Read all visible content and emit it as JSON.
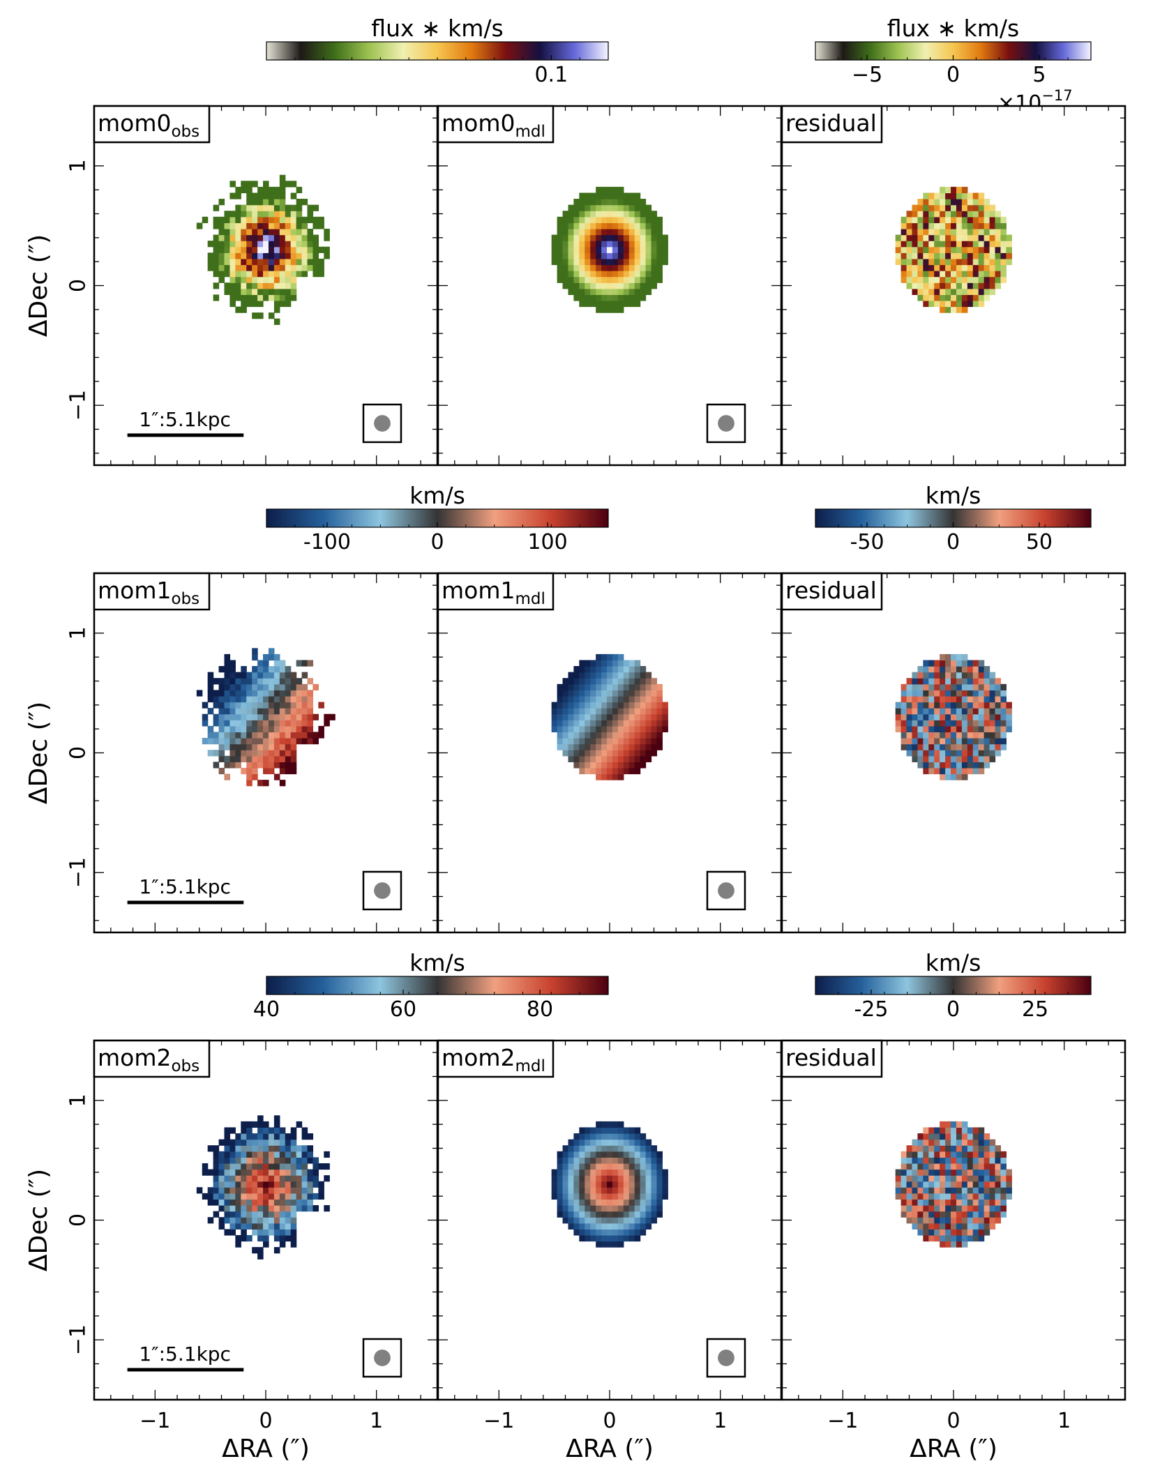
{
  "chart_data": {
    "type": "heatmap",
    "title": "",
    "xlabel": "ΔRA (″)",
    "ylabel": "ΔDec (″)",
    "xlim": [
      -1.55,
      1.55
    ],
    "ylim": [
      -1.5,
      1.5
    ],
    "xticks": [
      -1,
      0,
      1
    ],
    "yticks": [
      -1,
      0,
      1
    ],
    "grid": false,
    "scalebar_label": "1″:5.1kpc",
    "beam_diameter_arcsec": 0.15,
    "rows": [
      {
        "quantity": "mom0",
        "colorbars": [
          {
            "label": "flux ∗ km/s",
            "colormap": "gist_earth-like",
            "colors": [
              "#e6e4d6",
              "#1d1916",
              "#3f6f1a",
              "#9dc251",
              "#f0f0b0",
              "#f6c550",
              "#e07a10",
              "#7a1010",
              "#151040",
              "#6468d8",
              "#f4f4ff"
            ],
            "ticks": [
              {
                "label": "0.1",
                "value": 0.1
              }
            ],
            "range": [
              0,
              0.12
            ]
          },
          {
            "label": "flux ∗ km/s",
            "colormap": "gist_earth-like",
            "colors": [
              "#e6e4d6",
              "#1d1916",
              "#3f6f1a",
              "#9dc251",
              "#f0f0b0",
              "#f6c550",
              "#e07a10",
              "#7a1010",
              "#151040",
              "#6468d8",
              "#f4f4ff"
            ],
            "ticks": [
              {
                "label": "−5",
                "value": -5
              },
              {
                "label": "0",
                "value": 0
              },
              {
                "label": "5",
                "value": 5
              }
            ],
            "range": [
              -8,
              8
            ],
            "multiplier": "×10",
            "exponent": "−17"
          }
        ],
        "panels": [
          {
            "label": "mom0",
            "subscript": "obs",
            "kind": "obs",
            "center": [
              0.0,
              0.3
            ],
            "radius_arcsec": 0.52,
            "peak": 0.12
          },
          {
            "label": "mom0",
            "subscript": "mdl",
            "kind": "mdl",
            "center": [
              0.0,
              0.3
            ],
            "radius_arcsec": 0.52,
            "peak": 0.12
          },
          {
            "label": "residual",
            "subscript": "",
            "kind": "res",
            "center": [
              0.0,
              0.3
            ],
            "radius_arcsec": 0.52
          }
        ]
      },
      {
        "quantity": "mom1",
        "colorbars": [
          {
            "label": "km/s",
            "colormap": "RdBu_r-like",
            "colors": [
              "#0d1e4a",
              "#25609b",
              "#8ec5df",
              "#343434",
              "#f0a080",
              "#c8422e",
              "#4a0010"
            ],
            "ticks": [
              {
                "label": "-100",
                "value": -100
              },
              {
                "label": "0",
                "value": 0
              },
              {
                "label": "100",
                "value": 100
              }
            ],
            "range": [
              -155,
              155
            ]
          },
          {
            "label": "km/s",
            "colormap": "RdBu_r-like",
            "colors": [
              "#0d1e4a",
              "#25609b",
              "#8ec5df",
              "#343434",
              "#f0a080",
              "#c8422e",
              "#4a0010"
            ],
            "ticks": [
              {
                "label": "-50",
                "value": -50
              },
              {
                "label": "0",
                "value": 0
              },
              {
                "label": "50",
                "value": 50
              }
            ],
            "range": [
              -80,
              80
            ]
          }
        ],
        "panels": [
          {
            "label": "mom1",
            "subscript": "obs",
            "kind": "obs",
            "center": [
              0.0,
              0.3
            ],
            "radius_arcsec": 0.52,
            "vmax_kms": 150
          },
          {
            "label": "mom1",
            "subscript": "mdl",
            "kind": "mdl",
            "center": [
              0.0,
              0.3
            ],
            "radius_arcsec": 0.52,
            "vmax_kms": 150
          },
          {
            "label": "residual",
            "subscript": "",
            "kind": "res",
            "center": [
              0.0,
              0.3
            ],
            "radius_arcsec": 0.52
          }
        ]
      },
      {
        "quantity": "mom2",
        "colorbars": [
          {
            "label": "km/s",
            "colormap": "RdBu_r-like",
            "colors": [
              "#0d1e4a",
              "#25609b",
              "#8ec5df",
              "#343434",
              "#f0a080",
              "#c8422e",
              "#4a0010"
            ],
            "ticks": [
              {
                "label": "40",
                "value": 40
              },
              {
                "label": "60",
                "value": 60
              },
              {
                "label": "80",
                "value": 80
              }
            ],
            "range": [
              40,
              90
            ]
          },
          {
            "label": "km/s",
            "colormap": "RdBu_r-like",
            "colors": [
              "#0d1e4a",
              "#25609b",
              "#8ec5df",
              "#343434",
              "#f0a080",
              "#c8422e",
              "#4a0010"
            ],
            "ticks": [
              {
                "label": "-25",
                "value": -25
              },
              {
                "label": "0",
                "value": 0
              },
              {
                "label": "25",
                "value": 25
              }
            ],
            "range": [
              -42,
              42
            ]
          }
        ],
        "panels": [
          {
            "label": "mom2",
            "subscript": "obs",
            "kind": "obs",
            "center": [
              0.0,
              0.3
            ],
            "radius_arcsec": 0.52,
            "range_kms": [
              40,
              90
            ]
          },
          {
            "label": "mom2",
            "subscript": "mdl",
            "kind": "mdl",
            "center": [
              0.0,
              0.3
            ],
            "radius_arcsec": 0.52,
            "range_kms": [
              40,
              90
            ]
          },
          {
            "label": "residual",
            "subscript": "",
            "kind": "res",
            "center": [
              0.0,
              0.3
            ],
            "radius_arcsec": 0.52
          }
        ]
      }
    ]
  }
}
